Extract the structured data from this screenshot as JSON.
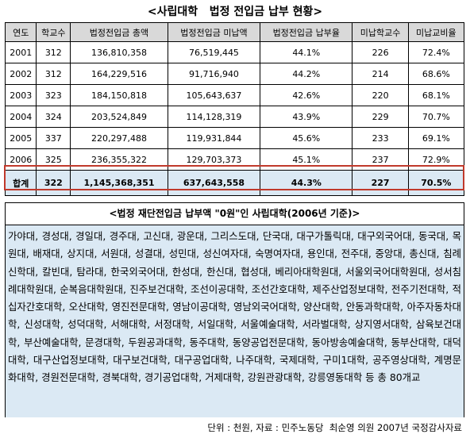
{
  "header": {
    "title": "<사립대학   법정 전입금 납부 현황>"
  },
  "table": {
    "columns": [
      "연도",
      "학교수",
      "법정전입금 총액",
      "법정전입금 미납액",
      "법정전입금 납부율",
      "미납학교수",
      "미납교비율"
    ],
    "rows": [
      [
        "2001",
        "312",
        "136,810,358",
        "76,519,445",
        "44.1%",
        "226",
        "72.4%"
      ],
      [
        "2002",
        "312",
        "164,229,516",
        "91,716,940",
        "44.2%",
        "214",
        "68.6%"
      ],
      [
        "2003",
        "323",
        "184,150,818",
        "105,643,637",
        "42.6%",
        "220",
        "68.1%"
      ],
      [
        "2004",
        "324",
        "203,524,849",
        "114,128,319",
        "43.9%",
        "229",
        "70.7%"
      ],
      [
        "2005",
        "337",
        "220,297,488",
        "119,931,844",
        "45.6%",
        "233",
        "69.1%"
      ],
      [
        "2006",
        "325",
        "236,355,322",
        "129,703,373",
        "45.1%",
        "237",
        "72.9%"
      ]
    ],
    "total": [
      "합계",
      "322",
      "1,145,368,351",
      "637,643,558",
      "44.3%",
      "227",
      "70.5%"
    ]
  },
  "section": {
    "title": "<법정 재단전입금 납부액 \"0원\"인 사립대학(2006년 기준)>",
    "text": "가야대, 경성대, 경일대, 경주대, 고신대, 광운대, 그리스도대, 단국대, 대구가톨릭대, 대구외국어대, 동국대, 목원대, 배재대, 상지대, 서원대, 성결대, 성민대, 성신여자대, 숙명여자대, 용인대, 전주대, 중앙대, 총신대, 침례신학대, 칼빈대, 탐라대, 한국외국어대, 한성대, 한신대, 협성대, 베리아대학원대, 서울외국어대학원대, 성서침례대학원대, 순복음대학원대, 진주보건대학, 조선이공대학, 조선간호대학, 제주산업정보대학, 전주기전대학, 적십자간호대학, 오산대학, 영진전문대학, 영남이공대학, 영남외국어대학, 양산대학, 안동과학대학, 아주자동차대학, 신성대학, 성덕대학, 서해대학, 서정대학, 서일대학, 서울예술대학, 서라벌대학, 상지영서대학, 삼육보건대학, 부산예술대학, 문경대학, 두원공과대학, 동주대학, 동양공업전문대학, 동아방송예술대학, 동부산대학, 대덕대학, 대구산업정보대학, 대구보건대학, 대구공업대학, 나주대학, 국제대학, 구미1대학, 공주영상대학, 계명문화대학, 경원전문대학, 경북대학, 경기공업대학, 거제대학, 강원관광대학, 강릉영동대학 등 총 80개교"
  },
  "footer": {
    "note": "단위 : 천원, 자료 : 민주노동당  최순영 의원 2007년 국정감사자료"
  }
}
